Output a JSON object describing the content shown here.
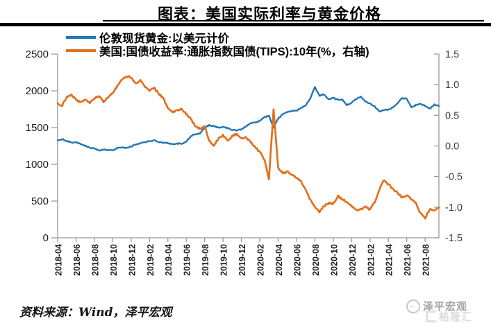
{
  "title": {
    "text": "图表：美国实际利率与黄金价格"
  },
  "source_note": "资料来源：Wind，泽平宏观",
  "watermark": {
    "brand": "泽平宏观",
    "site": "格隆汇"
  },
  "colors": {
    "gold_line": "#1F77B4",
    "tips_line": "#E3701E",
    "axis": "#999999",
    "left_tick_label": "#1a1a1a",
    "right_tick_label": "#3d3d3d",
    "x_tick_label": "#1f1f1f"
  },
  "chart_data": {
    "type": "line",
    "title": "图表：美国实际利率与黄金价格",
    "grid": false,
    "legend_position": "top-left",
    "x_start": "2018-04",
    "x_months_span": 41.5,
    "x_tick_labels": [
      "2018-04",
      "2018-06",
      "2018-08",
      "2018-10",
      "2018-12",
      "2019-02",
      "2019-04",
      "2019-06",
      "2019-08",
      "2019-10",
      "2019-12",
      "2020-02",
      "2020-04",
      "2020-06",
      "2020-08",
      "2020-10",
      "2020-12",
      "2021-02",
      "2021-04",
      "2021-06",
      "2021-08"
    ],
    "left_axis": {
      "ticks": [
        0,
        500,
        1000,
        1500,
        2000,
        2500
      ],
      "range": [
        0,
        2500
      ]
    },
    "right_axis": {
      "ticks": [
        1.5,
        1.0,
        0.5,
        0.0,
        -0.5,
        -1.0,
        -1.5
      ],
      "range": [
        -1.5,
        1.5
      ]
    },
    "series": [
      {
        "name": "伦敦现货黄金:以美元计价",
        "axis": "left",
        "color": "#1F77B4",
        "x_step_months": 0.5,
        "values": [
          1325,
          1345,
          1315,
          1300,
          1298,
          1275,
          1250,
          1225,
          1215,
          1188,
          1200,
          1192,
          1190,
          1225,
          1230,
          1222,
          1242,
          1268,
          1288,
          1302,
          1312,
          1328,
          1300,
          1295,
          1288,
          1275,
          1282,
          1282,
          1305,
          1385,
          1410,
          1420,
          1498,
          1535,
          1520,
          1500,
          1505,
          1492,
          1468,
          1462,
          1478,
          1512,
          1558,
          1572,
          1588,
          1642,
          1660,
          1500,
          1620,
          1685,
          1710,
          1730,
          1728,
          1770,
          1800,
          1895,
          2050,
          1935,
          1950,
          1885,
          1905,
          1878,
          1880,
          1805,
          1840,
          1888,
          1920,
          1850,
          1830,
          1790,
          1720,
          1735,
          1745,
          1775,
          1830,
          1900,
          1890,
          1775,
          1810,
          1825,
          1795,
          1755,
          1815,
          1790
        ]
      },
      {
        "name": "美国:国债收益率:通胀指数国债(TIPS):10年(%，右轴)",
        "axis": "right",
        "color": "#E3701E",
        "x_step_months": 0.5,
        "values": [
          0.7,
          0.66,
          0.8,
          0.84,
          0.75,
          0.72,
          0.76,
          0.7,
          0.78,
          0.82,
          0.72,
          0.8,
          0.86,
          0.98,
          1.08,
          1.14,
          1.12,
          1.02,
          1.08,
          0.96,
          0.9,
          0.95,
          0.85,
          0.78,
          0.62,
          0.55,
          0.58,
          0.6,
          0.52,
          0.44,
          0.32,
          0.28,
          0.32,
          0.08,
          0.0,
          0.12,
          0.18,
          0.08,
          0.16,
          0.2,
          0.12,
          0.15,
          0.06,
          -0.02,
          -0.1,
          -0.22,
          -0.55,
          0.6,
          -0.35,
          -0.45,
          -0.42,
          -0.47,
          -0.52,
          -0.58,
          -0.72,
          -0.88,
          -1.0,
          -1.08,
          -0.98,
          -0.93,
          -0.95,
          -0.82,
          -0.87,
          -0.92,
          -0.98,
          -1.05,
          -1.03,
          -0.99,
          -1.04,
          -0.92,
          -0.72,
          -0.56,
          -0.63,
          -0.7,
          -0.77,
          -0.84,
          -0.8,
          -0.88,
          -0.93,
          -1.1,
          -1.18,
          -1.03,
          -1.06,
          -1.0
        ]
      }
    ]
  }
}
